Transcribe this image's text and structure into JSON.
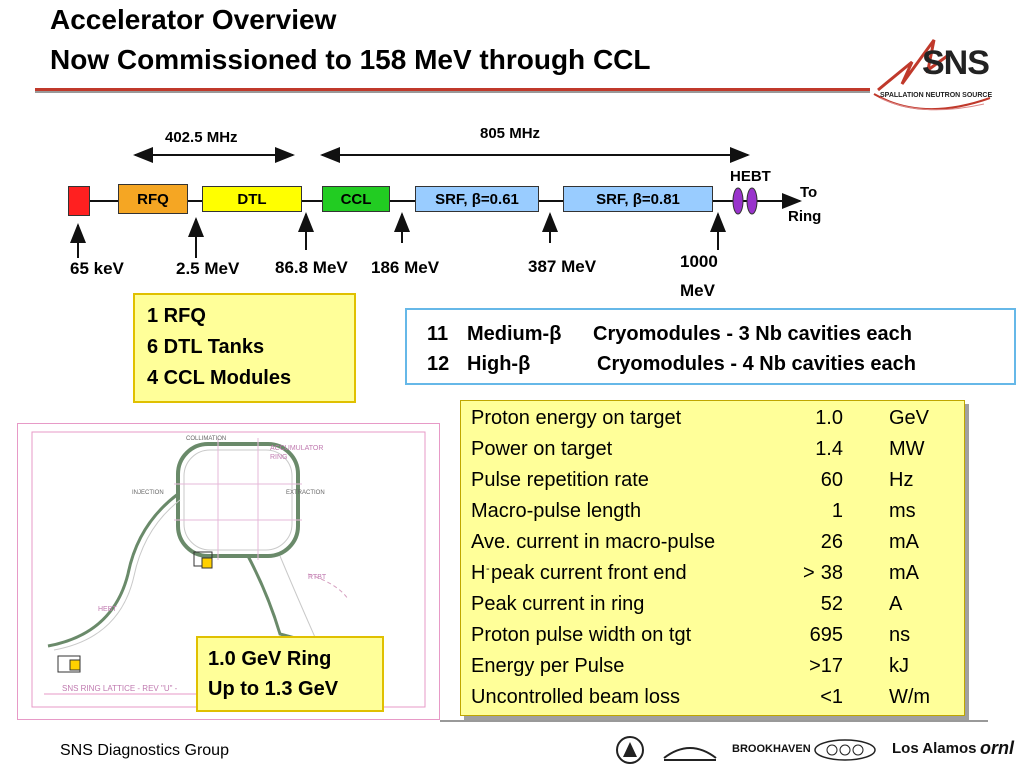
{
  "slide": {
    "title_line1": "Accelerator Overview",
    "title_line2": "Now Commissioned to 158 MeV through CCL"
  },
  "logo": {
    "name": "SNS",
    "subtitle": "SPALLATION NEUTRON SOURCE"
  },
  "linac": {
    "freq_left": "402.5 MHz",
    "freq_right": "805 MHz",
    "segments": {
      "rfq": "RFQ",
      "dtl": "DTL",
      "ccl": "CCL",
      "srf_low": "SRF, β=0.61",
      "srf_high": "SRF, β=0.81"
    },
    "hebt": "HEBT",
    "to_ring_1": "To",
    "to_ring_2": "Ring",
    "energies": {
      "e1": "65 keV",
      "e2": "2.5 MeV",
      "e3": "86.8 MeV",
      "e4": "186 MeV",
      "e5": "387 MeV",
      "e6a": "1000",
      "e6b": "MeV"
    }
  },
  "components": {
    "line1": "1  RFQ",
    "line2": "6  DTL Tanks",
    "line3": "4  CCL Modules"
  },
  "cryo": {
    "row1_num": "11",
    "row1_name": "Medium-β",
    "row1_desc": "Cryomodules - 3 Nb cavities each",
    "row2_num": "12",
    "row2_name": "High-β",
    "row2_desc": "Cryomodules - 4 Nb cavities each"
  },
  "ring_drawing": {
    "label_accumulator": "ACCUMULATOR RING",
    "label_hebt": "HEBT",
    "label_rtbt": "RTBT",
    "label_injection": "INJECTION",
    "label_extraction": "EXTRACTION",
    "label_collimation": "COLLIMATION",
    "caption": "SNS RING LATTICE - REV \"U\" -"
  },
  "ring_box": {
    "line1": "1.0 GeV Ring",
    "line2": "Up to 1.3 GeV"
  },
  "parameters": [
    {
      "label": "Proton energy on target",
      "gt": "",
      "value": "1.0",
      "unit": "GeV"
    },
    {
      "label": "Power on target",
      "gt": "",
      "value": "1.4",
      "unit": "MW"
    },
    {
      "label": "Pulse repetition rate",
      "gt": "",
      "value": "60",
      "unit": "Hz"
    },
    {
      "label": "Macro-pulse length",
      "gt": "",
      "value": "1",
      "unit": "ms"
    },
    {
      "label": "Ave. current in macro-pulse",
      "gt": "",
      "value": "26",
      "unit": "mA"
    },
    {
      "label": "H  peak current front end",
      "gt": ">",
      "value": "38",
      "unit": "mA"
    },
    {
      "label": "Peak current in ring",
      "gt": "",
      "value": "52",
      "unit": "A"
    },
    {
      "label": "Proton pulse width on tgt",
      "gt": "",
      "value": "695",
      "unit": "ns"
    },
    {
      "label": "Energy per Pulse",
      "gt": "",
      "value": ">17",
      "unit": "kJ"
    },
    {
      "label": "Uncontrolled beam loss",
      "gt": "",
      "value": "<1",
      "unit": "W/m"
    }
  ],
  "footer": {
    "text": "SNS Diagnostics Group",
    "partner_brookhaven": "BROOKHAVEN",
    "partner_losalamos": "Los Alamos",
    "partner_ornl": "ornl"
  },
  "colors": {
    "rfq": "#f5a623",
    "dtl": "#ffff00",
    "ccl": "#22cc22",
    "srf": "#99ccff",
    "source": "#ff2020",
    "hebt": "#9933cc"
  }
}
